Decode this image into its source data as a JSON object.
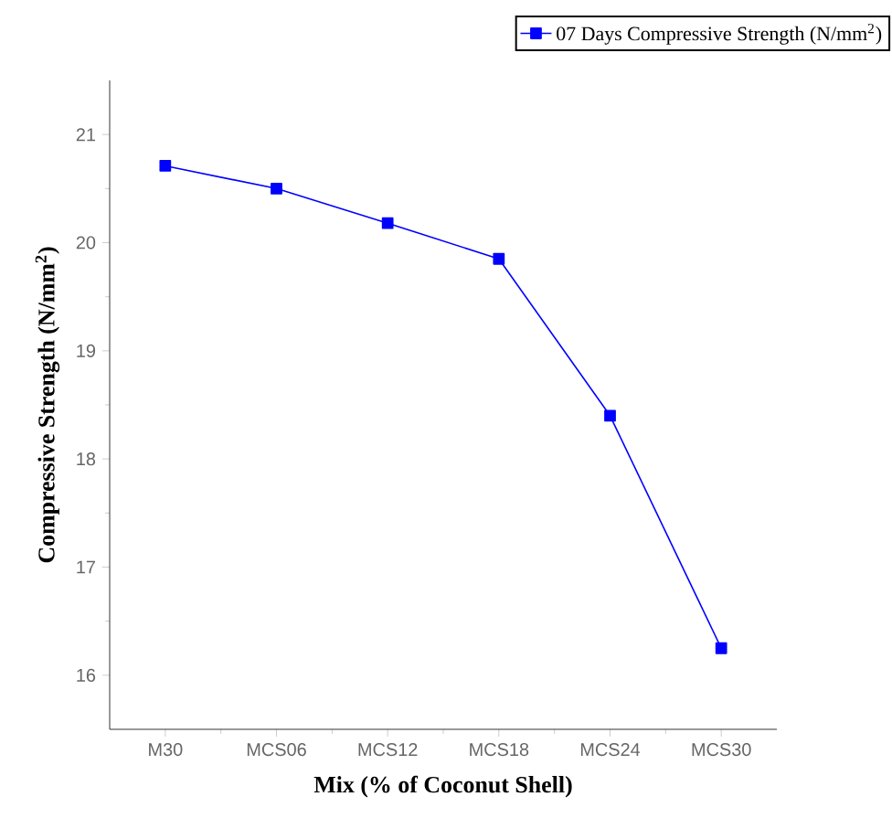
{
  "chart_data": {
    "type": "line",
    "xlabel": "Mix (% of Coconut Shell)",
    "ylabel": "Compressive Strength (N/mm$^{2}$)",
    "categories": [
      "M30",
      "MCS06",
      "MCS12",
      "MCS18",
      "MCS24",
      "MCS30"
    ],
    "series": [
      {
        "name": "07 Days Compressive Strength (N/mm$^{2}$)",
        "color": "#0000ff",
        "values": [
          20.71,
          20.5,
          20.18,
          19.85,
          18.4,
          16.25
        ]
      }
    ],
    "ylim": [
      15.5,
      21.5
    ],
    "yticks": [
      16,
      17,
      18,
      19,
      20,
      21
    ],
    "legend": "top right",
    "marker": "square",
    "line_style": "solid"
  }
}
